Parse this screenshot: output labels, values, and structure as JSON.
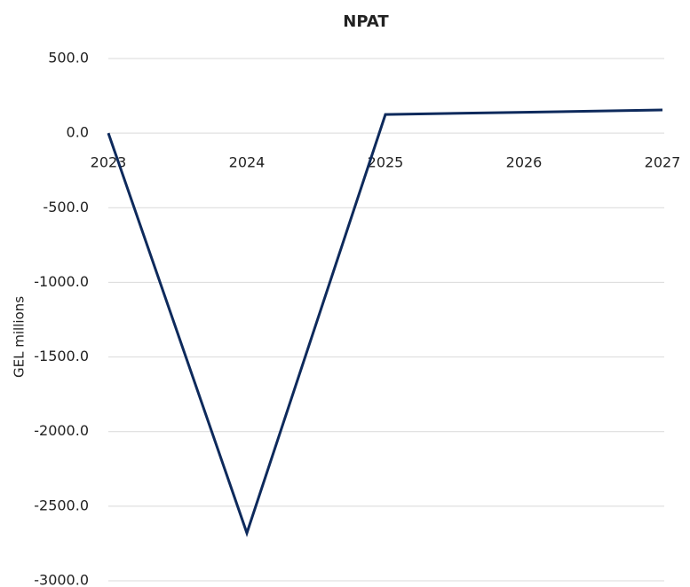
{
  "chart_data": {
    "type": "line",
    "title": "NPAT",
    "y_label": "GEL millions",
    "categories": [
      "2023",
      "2024",
      "2025",
      "2026",
      "2027"
    ],
    "series": [
      {
        "name": "NPAT",
        "color": "#0e2a5c",
        "values": [
          0,
          -2680,
          125,
          140,
          155
        ]
      }
    ],
    "ylim": [
      -3000,
      500
    ],
    "yticks": [
      {
        "value": 500,
        "label": "500.0"
      },
      {
        "value": 0,
        "label": "0.0"
      },
      {
        "value": -500,
        "label": "-500.0"
      },
      {
        "value": -1000,
        "label": "-1000.0"
      },
      {
        "value": -1500,
        "label": "-1500.0"
      },
      {
        "value": -2000,
        "label": "-2000.0"
      },
      {
        "value": -2500,
        "label": "-2500.0"
      },
      {
        "value": -3000,
        "label": "-3000.0"
      }
    ],
    "grid": true
  }
}
